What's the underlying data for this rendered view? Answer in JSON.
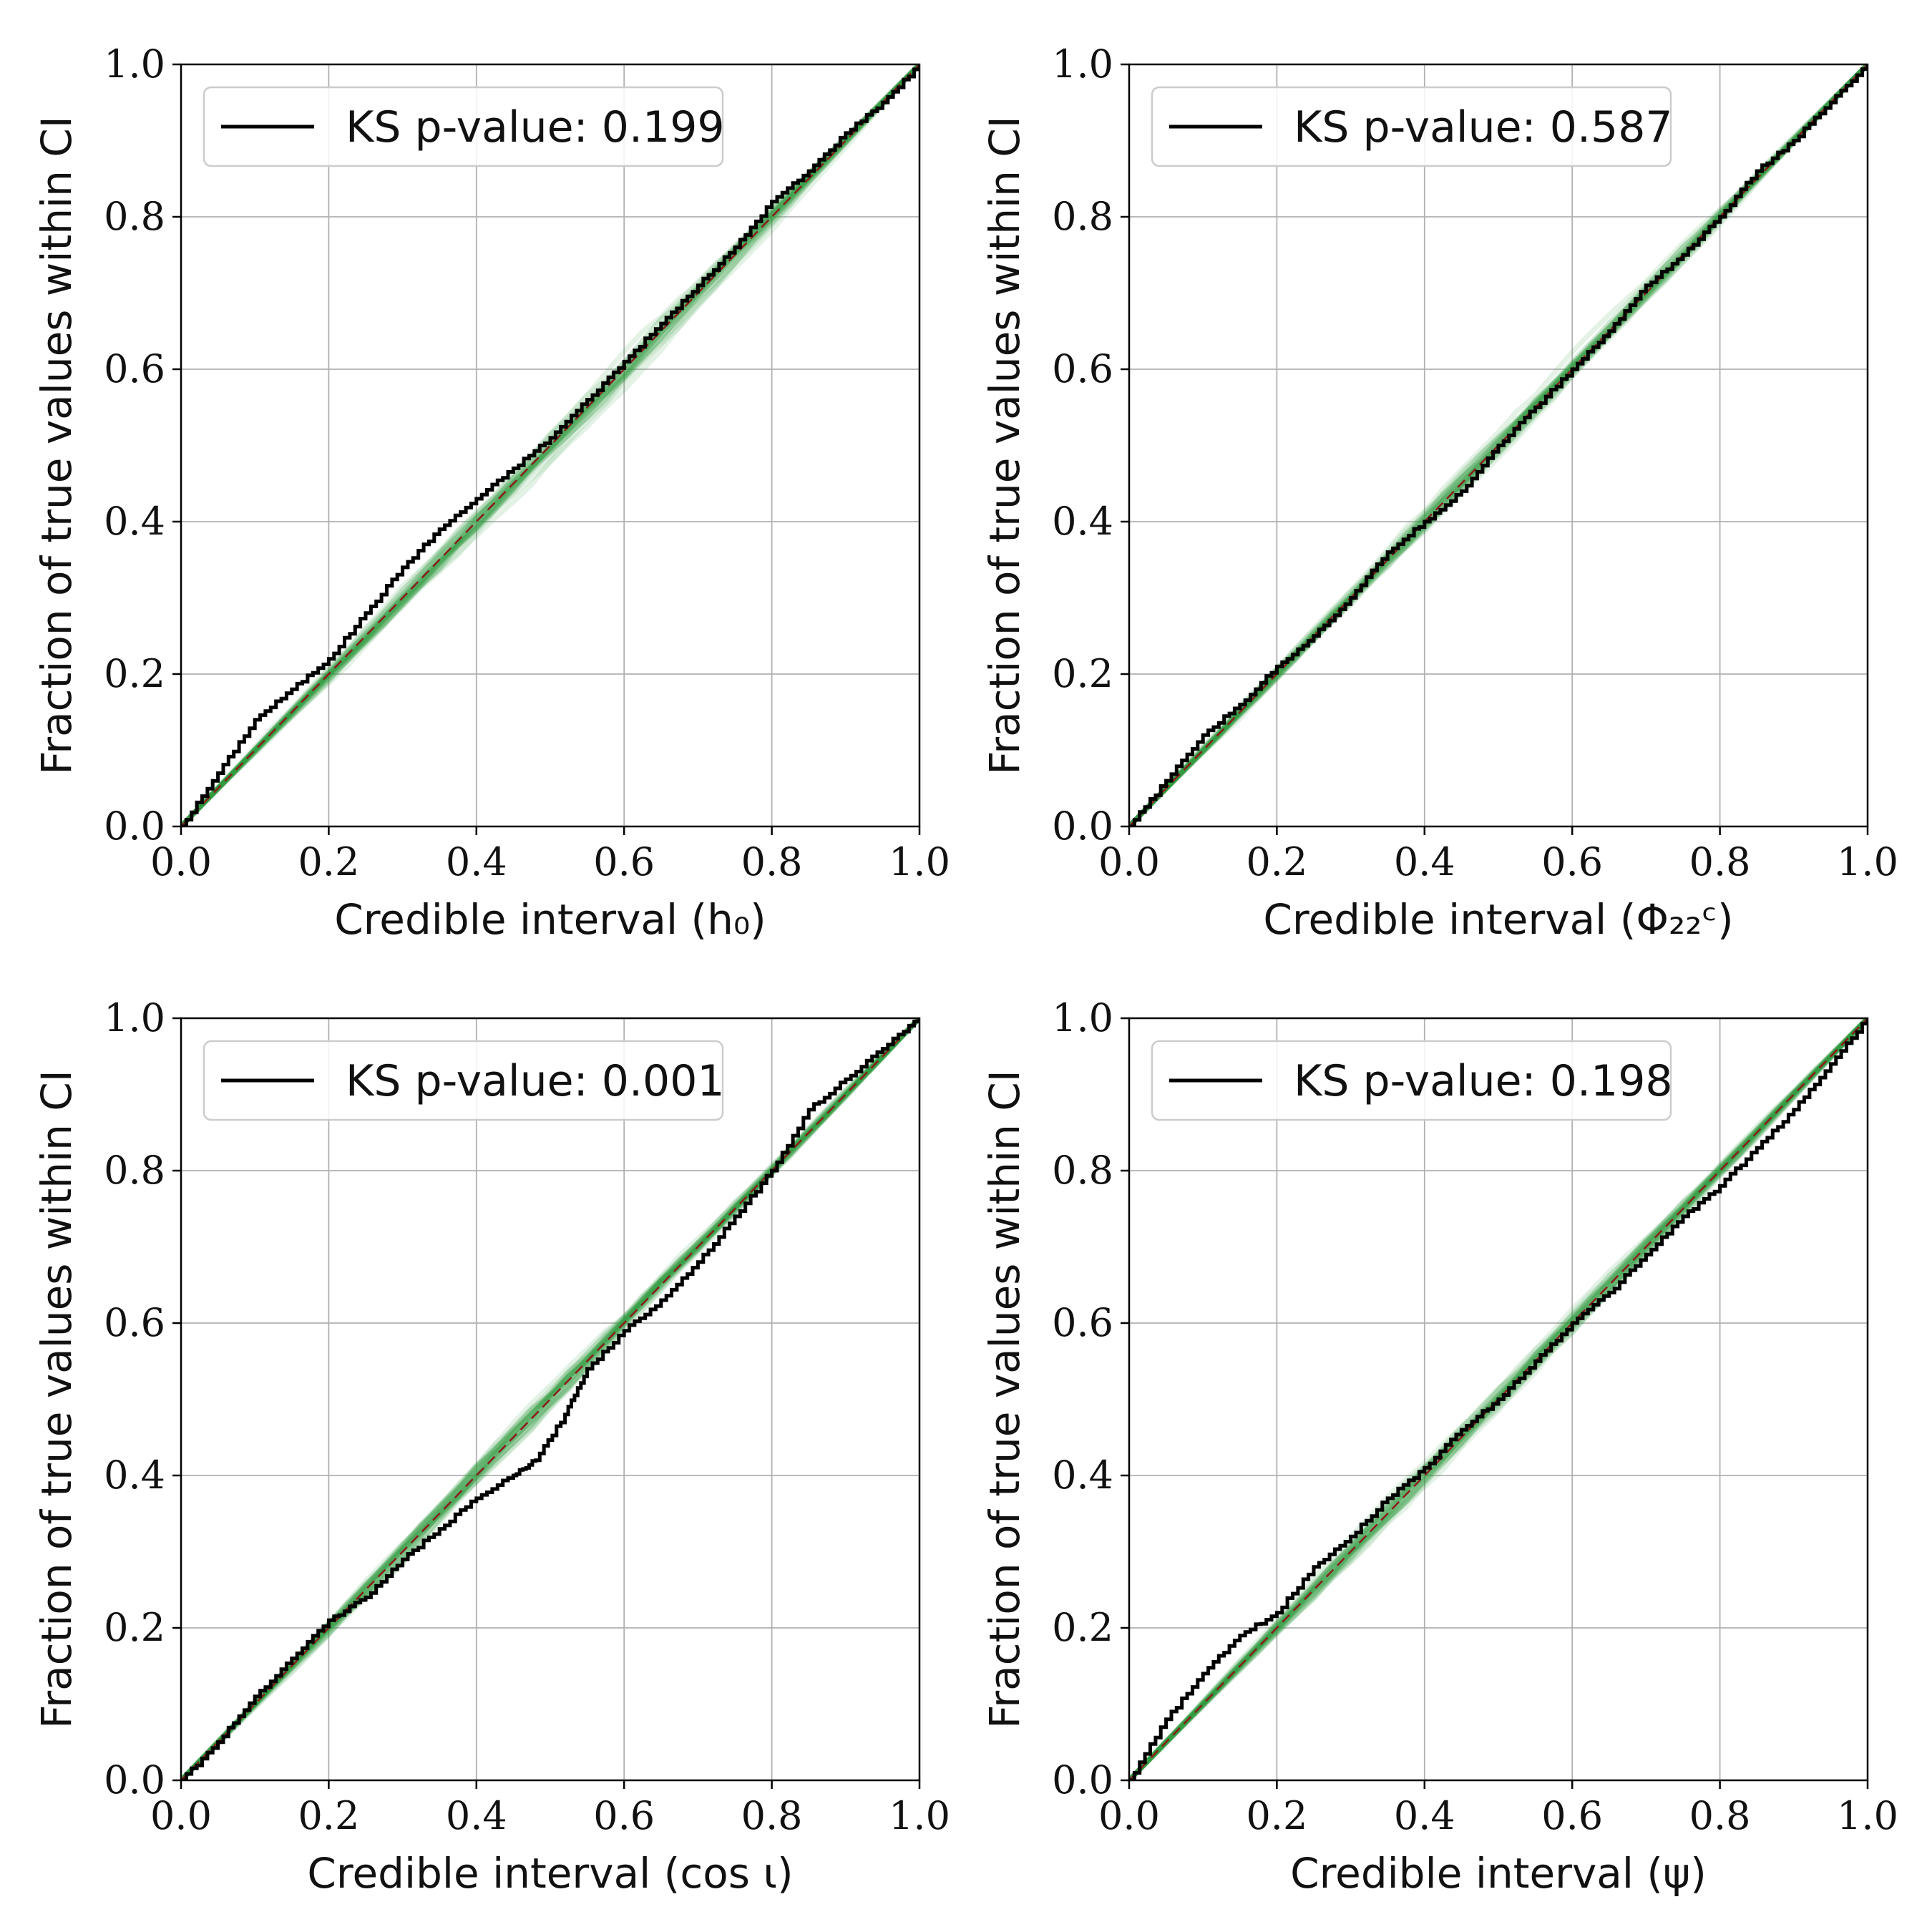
{
  "colors": {
    "observed_line": "#000000",
    "reference_line": "#8b1a1a",
    "simulated_band": "#2e9e3e",
    "grid": "#b0b0b0"
  },
  "chart_data": [
    {
      "type": "line",
      "xlabel": "Credible interval (h₀)",
      "ylabel": "Fraction of true values within CI",
      "xlim": [
        0,
        1
      ],
      "ylim": [
        0,
        1
      ],
      "xticks": [
        "0.0",
        "0.2",
        "0.4",
        "0.6",
        "0.8",
        "1.0"
      ],
      "yticks": [
        "0.0",
        "0.2",
        "0.4",
        "0.6",
        "0.8",
        "1.0"
      ],
      "grid": true,
      "legend_position": "upper-left",
      "legend": "KS p-value: 0.199",
      "series": [
        {
          "x": [
            0,
            0.05,
            0.1,
            0.15,
            0.2,
            0.25,
            0.3,
            0.35,
            0.4,
            0.45,
            0.5,
            0.55,
            0.6,
            0.65,
            0.7,
            0.75,
            0.8,
            0.85,
            0.9,
            0.95,
            1.0
          ],
          "y": [
            0,
            0.07,
            0.14,
            0.18,
            0.22,
            0.28,
            0.34,
            0.39,
            0.43,
            0.47,
            0.51,
            0.56,
            0.61,
            0.66,
            0.71,
            0.76,
            0.82,
            0.86,
            0.91,
            0.95,
            1.0
          ]
        }
      ]
    },
    {
      "type": "line",
      "xlabel": "Credible interval (Φ₂₂ᶜ)",
      "ylabel": "Fraction of true values within CI",
      "xlim": [
        0,
        1
      ],
      "ylim": [
        0,
        1
      ],
      "xticks": [
        "0.0",
        "0.2",
        "0.4",
        "0.6",
        "0.8",
        "1.0"
      ],
      "yticks": [
        "0.0",
        "0.2",
        "0.4",
        "0.6",
        "0.8",
        "1.0"
      ],
      "grid": true,
      "legend_position": "upper-left",
      "legend": "KS p-value: 0.587",
      "series": [
        {
          "x": [
            0,
            0.05,
            0.1,
            0.15,
            0.2,
            0.25,
            0.3,
            0.35,
            0.4,
            0.45,
            0.5,
            0.55,
            0.6,
            0.65,
            0.7,
            0.75,
            0.8,
            0.85,
            0.9,
            0.95,
            1.0
          ],
          "y": [
            0,
            0.06,
            0.12,
            0.16,
            0.21,
            0.25,
            0.3,
            0.36,
            0.4,
            0.44,
            0.5,
            0.55,
            0.6,
            0.65,
            0.71,
            0.75,
            0.8,
            0.86,
            0.9,
            0.95,
            1.0
          ]
        }
      ]
    },
    {
      "type": "line",
      "xlabel": "Credible interval (cos ι)",
      "ylabel": "Fraction of true values within CI",
      "xlim": [
        0,
        1
      ],
      "ylim": [
        0,
        1
      ],
      "xticks": [
        "0.0",
        "0.2",
        "0.4",
        "0.6",
        "0.8",
        "1.0"
      ],
      "yticks": [
        "0.0",
        "0.2",
        "0.4",
        "0.6",
        "0.8",
        "1.0"
      ],
      "grid": true,
      "legend_position": "upper-left",
      "legend": "KS p-value: 0.001",
      "series": [
        {
          "x": [
            0,
            0.05,
            0.1,
            0.15,
            0.2,
            0.25,
            0.3,
            0.35,
            0.4,
            0.45,
            0.48,
            0.52,
            0.55,
            0.6,
            0.65,
            0.7,
            0.75,
            0.8,
            0.85,
            0.9,
            0.95,
            1.0
          ],
          "y": [
            0,
            0.05,
            0.11,
            0.16,
            0.21,
            0.24,
            0.29,
            0.33,
            0.37,
            0.4,
            0.42,
            0.48,
            0.54,
            0.59,
            0.63,
            0.68,
            0.74,
            0.8,
            0.88,
            0.92,
            0.96,
            1.0
          ]
        }
      ]
    },
    {
      "type": "line",
      "xlabel": "Credible interval (ψ)",
      "ylabel": "Fraction of true values within CI",
      "xlim": [
        0,
        1
      ],
      "ylim": [
        0,
        1
      ],
      "xticks": [
        "0.0",
        "0.2",
        "0.4",
        "0.6",
        "0.8",
        "1.0"
      ],
      "yticks": [
        "0.0",
        "0.2",
        "0.4",
        "0.6",
        "0.8",
        "1.0"
      ],
      "grid": true,
      "legend_position": "upper-left",
      "legend": "KS p-value: 0.198",
      "series": [
        {
          "x": [
            0,
            0.05,
            0.1,
            0.15,
            0.2,
            0.25,
            0.3,
            0.35,
            0.4,
            0.45,
            0.5,
            0.55,
            0.6,
            0.65,
            0.7,
            0.75,
            0.8,
            0.85,
            0.9,
            0.95,
            1.0
          ],
          "y": [
            0,
            0.08,
            0.14,
            0.19,
            0.22,
            0.28,
            0.32,
            0.37,
            0.41,
            0.46,
            0.5,
            0.55,
            0.6,
            0.64,
            0.69,
            0.74,
            0.78,
            0.83,
            0.88,
            0.94,
            1.0
          ]
        }
      ]
    }
  ]
}
